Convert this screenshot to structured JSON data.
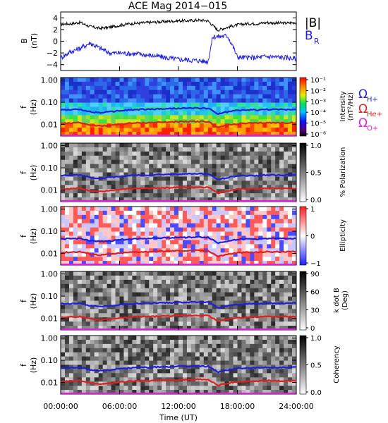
{
  "chart_data": [
    {
      "type": "line",
      "title": "ACE Mag 2014−015",
      "ylabel": "B",
      "yunit": "(nT)",
      "ylim": [
        -5,
        5
      ],
      "yticks": [
        "4",
        "2",
        "0",
        "−2",
        "−4"
      ],
      "series": [
        {
          "name": "|B|",
          "color": "#000000",
          "x_hours": [
            0,
            1,
            2,
            3,
            4,
            5,
            6,
            7,
            8,
            9,
            10,
            11,
            12,
            13,
            14,
            15,
            16,
            17,
            18,
            19,
            20,
            21,
            22,
            23,
            24
          ],
          "values": [
            2.9,
            3.0,
            3.2,
            2.5,
            2.2,
            2.4,
            2.7,
            3.0,
            3.1,
            3.2,
            3.3,
            3.4,
            3.5,
            3.5,
            3.6,
            3.5,
            1.9,
            2.4,
            2.8,
            3.0,
            3.0,
            3.2,
            3.1,
            3.1,
            3.2
          ]
        },
        {
          "name": "B",
          "subscript": "R",
          "color": "#1f1fe0",
          "x_hours": [
            0,
            1,
            2,
            3,
            4,
            5,
            6,
            7,
            8,
            9,
            10,
            11,
            12,
            13,
            14,
            15,
            15.5,
            16,
            17,
            17.5,
            18,
            19,
            20,
            21,
            22,
            23,
            24
          ],
          "values": [
            -2.8,
            -1.8,
            -1.2,
            -0.3,
            -1.2,
            -2.0,
            -2.0,
            -2.1,
            -2.2,
            -2.4,
            -2.6,
            -2.9,
            -3.1,
            -3.2,
            -3.3,
            -3.5,
            0.8,
            0.8,
            0.9,
            -0.7,
            -2.7,
            -2.8,
            -2.8,
            -2.6,
            -2.7,
            -2.8,
            -3.0
          ]
        }
      ]
    },
    {
      "type": "heatmap",
      "name": "intensity",
      "ylabel": "f",
      "yunit": "(Hz)",
      "colorbar": {
        "label": "Intensity",
        "unit": "(nT²/Hz)",
        "ticks": [
          "10⁻¹",
          "10⁻²",
          "10⁻³",
          "10⁻⁴",
          "10⁻⁵",
          "10⁻⁶"
        ]
      },
      "legend": [
        {
          "label": "Ω",
          "sub": "H+",
          "color": "#1f1fe0"
        },
        {
          "label": "Ω",
          "sub": "He+",
          "color": "#e01f1f"
        },
        {
          "label": "Ω",
          "sub": "O+",
          "color": "#e01fe0"
        }
      ]
    },
    {
      "type": "heatmap",
      "name": "polarization",
      "ylabel": "f",
      "yunit": "(Hz)",
      "colorbar": {
        "label": "% Polarization",
        "ticks": [
          "1.0",
          "0.5",
          "0.0"
        ]
      }
    },
    {
      "type": "heatmap",
      "name": "ellipticity",
      "ylabel": "f",
      "yunit": "(Hz)",
      "colorbar": {
        "label": "Ellipticity",
        "ticks": [
          "1",
          "0",
          "−1"
        ]
      }
    },
    {
      "type": "heatmap",
      "name": "kdotb",
      "ylabel": "f",
      "yunit": "(Hz)",
      "colorbar": {
        "label": "k dot B",
        "unit": "(Deg)",
        "ticks": [
          "90",
          "60",
          "30",
          "0"
        ]
      }
    },
    {
      "type": "heatmap",
      "name": "coherency",
      "ylabel": "f",
      "yunit": "(Hz)",
      "colorbar": {
        "label": "Coherency",
        "ticks": [
          "1.0",
          "0.5",
          "0.0"
        ]
      }
    }
  ],
  "freq_axis": {
    "ylim": [
      0.003,
      1.3
    ],
    "tick_labels": [
      "1.00",
      "0.10",
      "0.01"
    ],
    "gyro_hz": {
      "x_hours": [
        0,
        1,
        2,
        3,
        4,
        5,
        6,
        7,
        8,
        9,
        10,
        11,
        12,
        13,
        14,
        15,
        16,
        17,
        18,
        19,
        20,
        21,
        22,
        23,
        24
      ],
      "H+": [
        0.045,
        0.046,
        0.048,
        0.037,
        0.034,
        0.037,
        0.041,
        0.045,
        0.047,
        0.048,
        0.05,
        0.051,
        0.053,
        0.053,
        0.055,
        0.053,
        0.029,
        0.037,
        0.043,
        0.045,
        0.045,
        0.048,
        0.047,
        0.047,
        0.049
      ],
      "He+": [
        0.011,
        0.0115,
        0.012,
        0.0095,
        0.0085,
        0.0092,
        0.0103,
        0.0113,
        0.0118,
        0.012,
        0.0125,
        0.0128,
        0.0133,
        0.0133,
        0.0137,
        0.0133,
        0.0073,
        0.0092,
        0.0107,
        0.0113,
        0.0113,
        0.012,
        0.0118,
        0.0118,
        0.012
      ],
      "O+": [
        0.0029,
        0.003,
        0.003,
        0.003,
        0.003,
        0.003,
        0.003,
        0.003,
        0.003,
        0.003,
        0.003,
        0.003,
        0.003,
        0.003,
        0.003,
        0.003,
        0.003,
        0.003,
        0.003,
        0.003,
        0.003,
        0.003,
        0.003,
        0.003,
        0.003
      ]
    }
  },
  "x_axis": {
    "label": "Time (UT)",
    "xlim_hours": [
      0,
      24
    ],
    "tick_labels": [
      "00:00:00",
      "06:00:00",
      "12:00:00",
      "18:00:00",
      "24:00:00"
    ],
    "tick_hours": [
      0,
      6,
      12,
      18,
      24
    ]
  },
  "colors": {
    "Hplus": "#1f1fe0",
    "Heplus": "#e01f1f",
    "Oplus": "#e01fe0",
    "absB": "#000000",
    "BR": "#1f1fe0"
  }
}
